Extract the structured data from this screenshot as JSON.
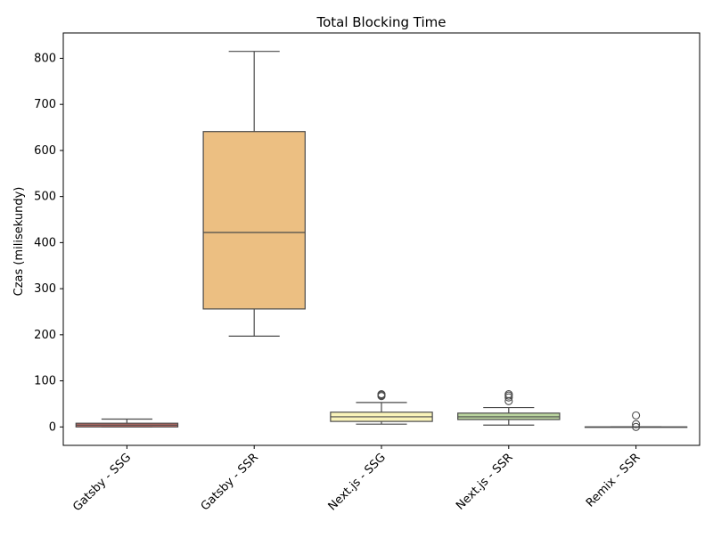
{
  "chart_data": {
    "type": "box",
    "title": "Total Blocking Time",
    "xlabel": "",
    "ylabel": "Czas (milisekundy)",
    "ylim": [
      -40,
      855
    ],
    "yticks": [
      0,
      100,
      200,
      300,
      400,
      500,
      600,
      700,
      800
    ],
    "grid": false,
    "legend": "none",
    "categories": [
      "Gatsby - SSG",
      "Gatsby - SSR",
      "Next.js - SSG",
      "Next.js - SSR",
      "Remix - SSR"
    ],
    "boxes": [
      {
        "whislo": 0,
        "q1": 0,
        "med": 4,
        "q3": 8,
        "whishi": 17,
        "fliers": [],
        "color": "#d9736b"
      },
      {
        "whislo": 197,
        "q1": 256,
        "med": 422,
        "q3": 641,
        "whishi": 815,
        "fliers": [],
        "color": "#ecbf82"
      },
      {
        "whislo": 6,
        "q1": 12,
        "med": 22,
        "q3": 32,
        "whishi": 53,
        "fliers": [
          67,
          69,
          71
        ],
        "color": "#f9f3b9"
      },
      {
        "whislo": 4,
        "q1": 16,
        "med": 22,
        "q3": 30,
        "whishi": 42,
        "fliers": [
          56,
          64,
          68,
          71
        ],
        "color": "#b9d49e"
      },
      {
        "whislo": 0,
        "q1": 0,
        "med": 0,
        "q3": 0,
        "whishi": 0,
        "fliers": [
          0,
          6,
          25
        ],
        "color": "#78a9d1"
      }
    ]
  }
}
